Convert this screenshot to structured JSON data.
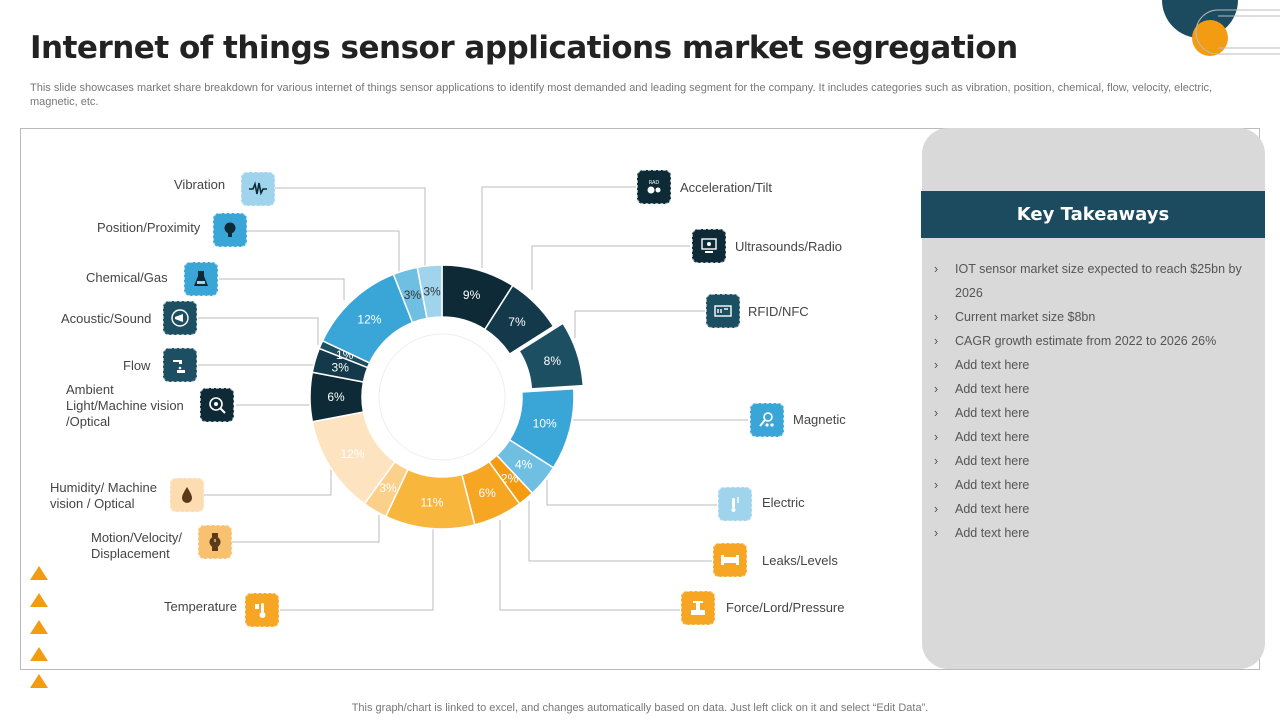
{
  "title": "Internet of things sensor applications market segregation",
  "subtitle": "This slide showcases market share breakdown for various internet of things sensor applications to identify most demanded and leading segment for the company. It includes categories such as vibration, position, chemical, flow, velocity,  electric, magnetic, etc.",
  "footer": "This graph/chart is linked to excel,  and changes automatically based on data. Just left click on it and select “Edit Data”.",
  "key_takeaways": {
    "heading": "Key Takeaways",
    "items": [
      "IOT  sensor  market  size  expected  to  reach  $25bn  by 2026",
      "Current  market  size $8bn",
      "CAGR  growth  estimate from  2022  to 2026  26%",
      "Add text here",
      "Add text here",
      "Add text here",
      "Add text here",
      "Add text here",
      "Add text here",
      "Add text here",
      "Add text here"
    ]
  },
  "chart_data": {
    "type": "pie",
    "variant": "donut",
    "labels": [
      "Acceleration/Tilt",
      "Ultrasounds/Radio",
      "RFID/NFC",
      "Magnetic",
      "Electric",
      "Leaks/Levels",
      "Force/Lord/Pressure",
      "Temperature",
      "Motion/Velocity/ Displacement",
      "Humidity/ Machine vision  / Optical",
      "Ambient Light/Machine vision /Optical",
      "Flow",
      "Acoustic/Sound",
      "Chemical/Gas",
      "Position/Proximity",
      "Vibration"
    ],
    "values": [
      9,
      7,
      8,
      10,
      4,
      2,
      6,
      11,
      3,
      12,
      6,
      3,
      1,
      12,
      3,
      3
    ],
    "value_labels": [
      "9%",
      "7%",
      "8%",
      "10%",
      "4%",
      "2%",
      "6%",
      "11%",
      "3%",
      "12%",
      "6%",
      "3%",
      "1%",
      "12%",
      "3%",
      "3%"
    ],
    "colors": [
      "#0d2a36",
      "#13394a",
      "#1d4f63",
      "#3aa6d8",
      "#6fbfe2",
      "#f39c12",
      "#f6a623",
      "#f9b63d",
      "#fbd08a",
      "#fde3bf",
      "#0d2a36",
      "#13394a",
      "#1d4f63",
      "#3aa6d8",
      "#6fbfe2",
      "#9fd4ec"
    ],
    "label_colors": [
      "#ffffff",
      "#ffffff",
      "#ffffff",
      "#ffffff",
      "#ffffff",
      "#ffffff",
      "#ffffff",
      "#ffffff",
      "#ffffff",
      "#ffffff",
      "#ffffff",
      "#ffffff",
      "#ffffff",
      "#ffffff",
      "#333333",
      "#333333"
    ],
    "exploded": "RFID/NFC"
  },
  "icons": [
    "wave-icon",
    "bulb-icon",
    "flask-icon",
    "megaphone-icon",
    "tap-icon",
    "eye-icon",
    "droplet-icon",
    "watch-icon",
    "thermometer-icon",
    "radar-icon",
    "monitor-icon",
    "rfid-icon",
    "magnet-icon",
    "plug-icon",
    "pipe-icon",
    "press-icon"
  ]
}
